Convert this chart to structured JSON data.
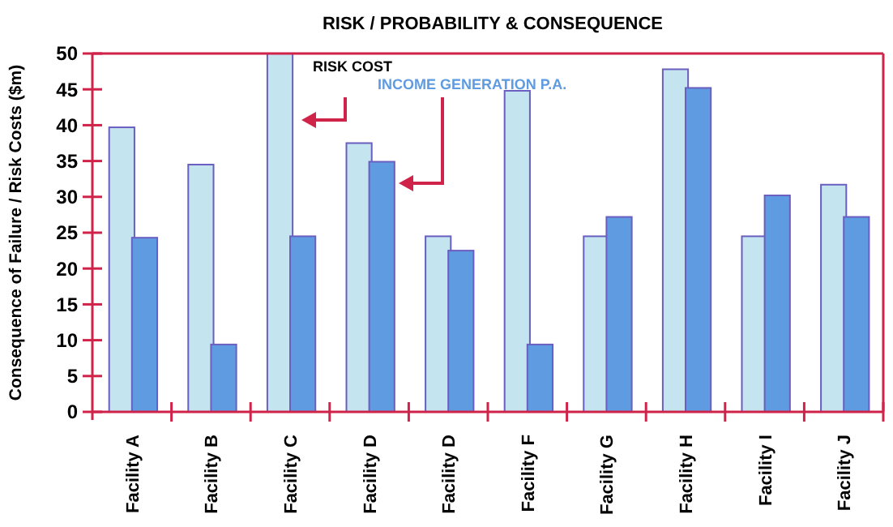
{
  "chart_data": {
    "type": "bar",
    "title": "RISK / PROBABILITY & CONSEQUENCE",
    "ylabel": "Consequence of Failure / Risk Costs ($m)",
    "categories": [
      "Facility A",
      "Facility B",
      "Facility C",
      "Facility D",
      "Facility D",
      "Facility F",
      "Facility G",
      "Facility H",
      "Facility I",
      "Facility J"
    ],
    "series": [
      {
        "name": "RISK COST",
        "color": "#c4e4f0",
        "values": [
          39.7,
          34.5,
          50,
          37.5,
          24.5,
          44.8,
          24.5,
          47.8,
          24.5,
          31.7
        ]
      },
      {
        "name": "INCOME GENERATION P.A.",
        "color": "#5f9be0",
        "values": [
          24.3,
          9.4,
          24.5,
          34.9,
          22.5,
          9.4,
          27.2,
          45.2,
          30.2,
          27.2
        ]
      }
    ],
    "ylim": [
      0,
      50
    ],
    "yticks": [
      0,
      5,
      10,
      15,
      20,
      25,
      30,
      35,
      40,
      45,
      50
    ],
    "grid": false,
    "legend": false
  }
}
